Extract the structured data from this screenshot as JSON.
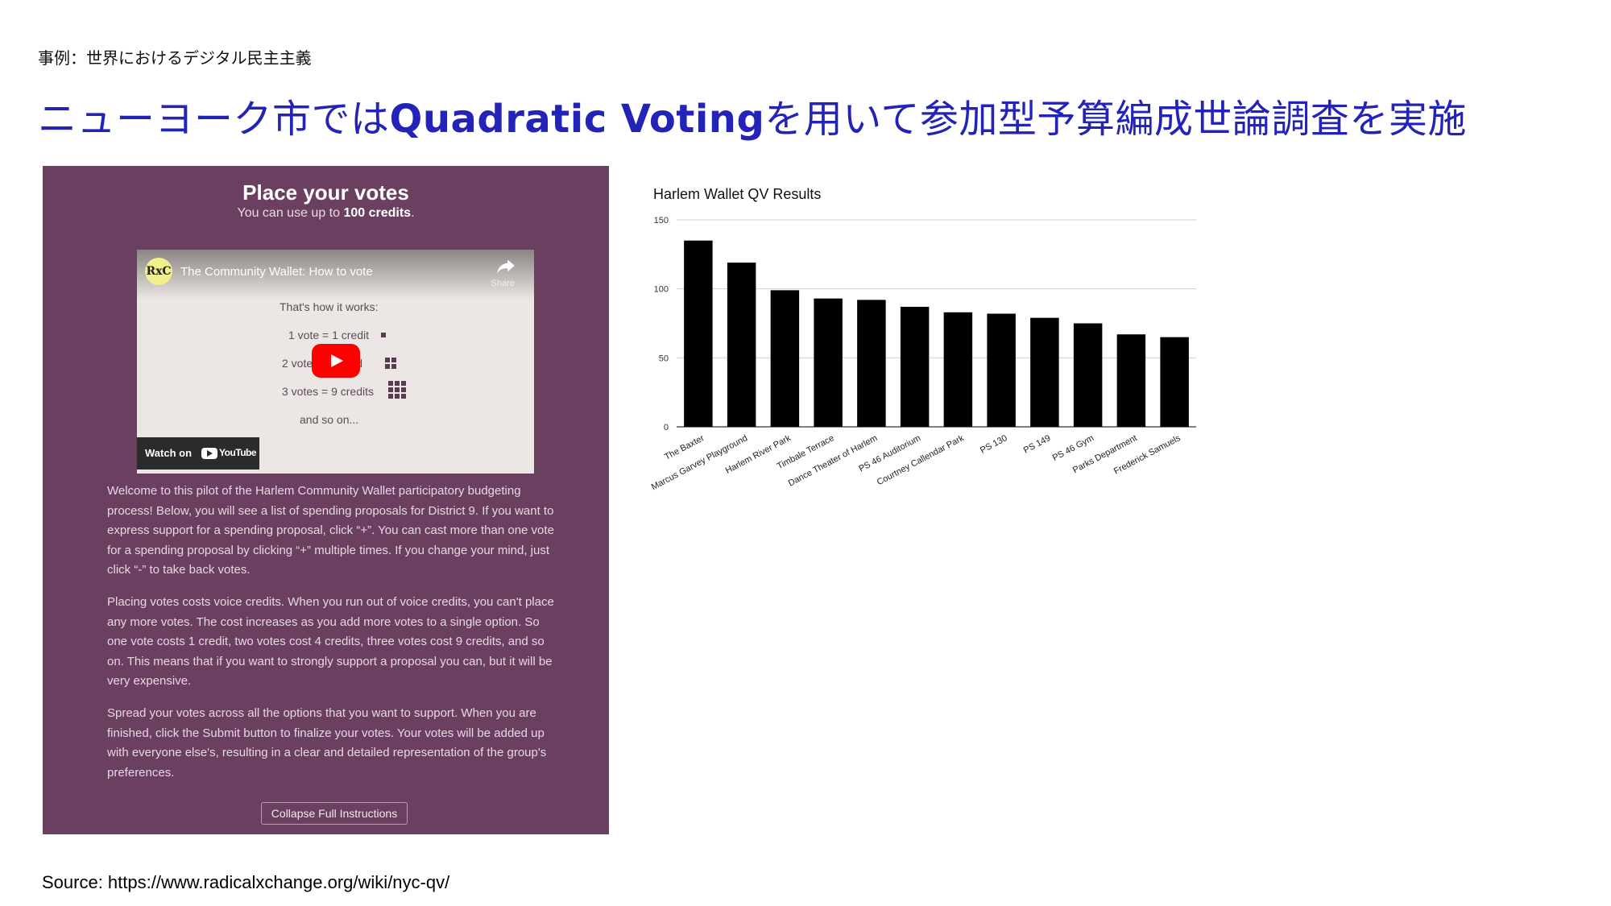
{
  "slide": {
    "eyebrow": "事例：世界におけるデジタル民主主義",
    "headline_pre": "ニューヨーク市では",
    "headline_bold": "Quadratic Voting",
    "headline_post": "を用いて参加型予算編成世論調査を実施",
    "source": "Source: https://www.radicalxchange.org/wiki/nyc-qv/",
    "accent_color": "#2323b8"
  },
  "panel": {
    "title": "Place your votes",
    "subtitle_pre": "You can use up to ",
    "subtitle_bold": "100 credits",
    "subtitle_post": ".",
    "background_color": "#6b3f5f",
    "video": {
      "channel_logo": "RxC",
      "title": "The Community Wallet: How to vote",
      "share_label": "Share",
      "line_intro": "That's how it works:",
      "line_1": "1 vote = 1 credit",
      "line_2": "2 votes = 4 credits",
      "line_3": "3 votes = 9 credits",
      "line_more": "and so on...",
      "watch_on": "Watch on",
      "youtube": "YouTube",
      "play_icon": "play-icon"
    },
    "paragraphs": [
      "Welcome to this pilot of the Harlem Community Wallet participatory budgeting process! Below, you will see a list of spending proposals for District 9. If you want to express support for a spending proposal, click “+”. You can cast more than one vote for a spending proposal by clicking “+” multiple times. If you change your mind, just click “-” to take back votes.",
      "Placing votes costs voice credits. When you run out of voice credits, you can't place any more votes. The cost increases as you add more votes to a single option. So one vote costs 1 credit, two votes cost 4 credits, three votes cost 9 credits, and so on. This means that if you want to strongly support a proposal you can, but it will be very expensive.",
      "Spread your votes across all the options that you want to support. When you are finished, click the Submit button to finalize your votes. Your votes will be added up with everyone else's, resulting in a clear and detailed representation of the group's preferences."
    ],
    "collapse_button": "Collapse Full Instructions"
  },
  "chart_data": {
    "type": "bar",
    "title": "Harlem Wallet QV Results",
    "xlabel": "",
    "ylabel": "",
    "ylim": [
      0,
      150
    ],
    "yticks": [
      0,
      50,
      100,
      150
    ],
    "grid": true,
    "bar_color": "#000000",
    "categories": [
      "The Baxter",
      "Marcus Garvey Playground",
      "Harlem River Park",
      "Timbale Terrace",
      "Dance Theater of Harlem",
      "PS 46 Auditorium",
      "Courtney Callendar Park",
      "PS 130",
      "PS 149",
      "PS 46 Gym",
      "Parks Department",
      "Frederick Samuels"
    ],
    "values": [
      135,
      119,
      99,
      93,
      92,
      87,
      83,
      82,
      79,
      75,
      67,
      65
    ]
  }
}
